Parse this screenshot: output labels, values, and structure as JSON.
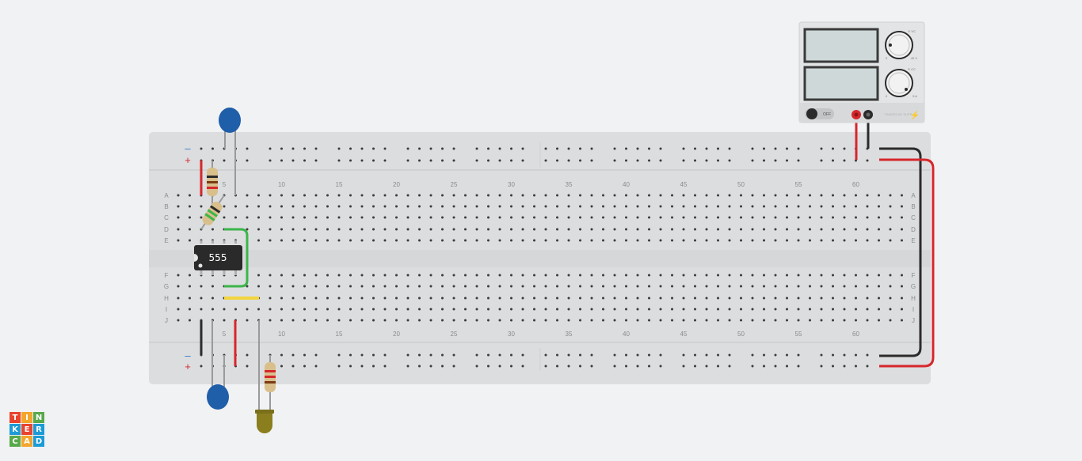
{
  "breadboard": {
    "row_letters": [
      "A",
      "B",
      "C",
      "D",
      "E",
      "F",
      "G",
      "H",
      "I",
      "J"
    ],
    "column_numbers": [
      "5",
      "10",
      "15",
      "20",
      "25",
      "30",
      "35",
      "40",
      "45",
      "50",
      "55",
      "60"
    ],
    "rail_minus": "–",
    "rail_plus": "+"
  },
  "chip": {
    "label": "555"
  },
  "power_supply": {
    "switch_label": "OFF",
    "voltage_knob": {
      "top_label": "⊙ VC",
      "min": "0",
      "max": "40 V"
    },
    "current_knob": {
      "top_label": "⊙ CC",
      "min": "0",
      "max": "5 A"
    },
    "brand": "TINKERCAD SUPPLY"
  },
  "logo": {
    "letters": [
      "T",
      "I",
      "N",
      "K",
      "E",
      "R",
      "C",
      "A",
      "D"
    ],
    "colors": [
      "#e8442f",
      "#f3a52c",
      "#58a94b",
      "#1c9bd6",
      "#e8442f",
      "#1c9bd6",
      "#58a94b",
      "#f3a52c",
      "#1c9bd6"
    ]
  },
  "colors": {
    "board": "#dcdddf",
    "rail_red": "#d6272c",
    "rail_blue": "#2e79c7",
    "wire_red": "#d6272c",
    "wire_black": "#2b2b2b",
    "wire_green": "#3bb54a",
    "wire_yellow": "#f2d53c",
    "capacitor": "#1f5ea8",
    "led": "#8a7e1f",
    "chip": "#2a2a2a"
  }
}
